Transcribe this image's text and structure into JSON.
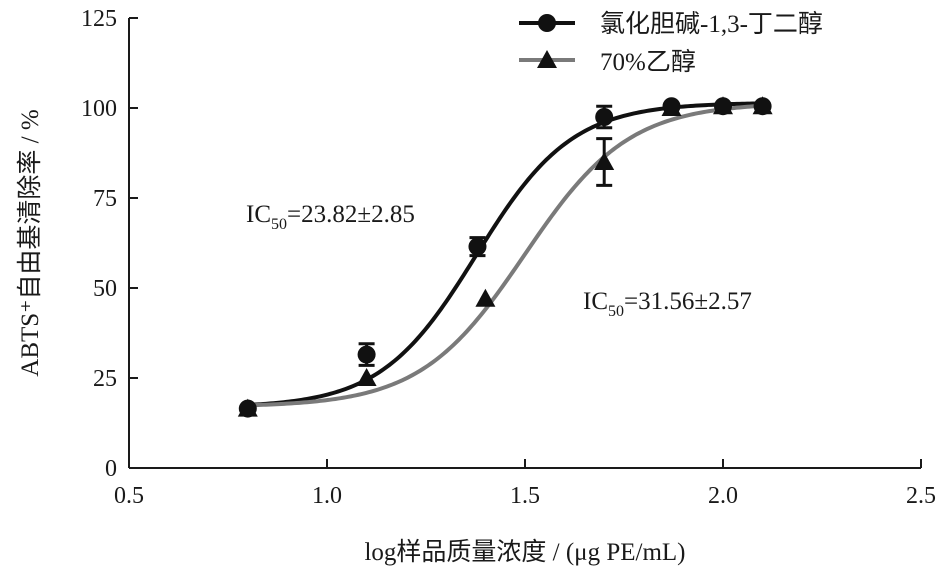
{
  "chart_data": {
    "type": "scatter",
    "xlabel": "log样品质量浓度 / (μg PE/mL)",
    "ylabel": "ABTS⁺自由基清除率 / %",
    "xlim": [
      0.5,
      2.5
    ],
    "ylim": [
      0,
      125
    ],
    "x_ticks": [
      "0.5",
      "1.0",
      "1.5",
      "2.0",
      "2.5"
    ],
    "y_ticks": [
      "0",
      "25",
      "50",
      "75",
      "100",
      "125"
    ],
    "legend_position": "top-right",
    "grid": false,
    "series": [
      {
        "name": "氯化胆碱-1,3-丁二醇",
        "marker": "circle",
        "color": "#111111",
        "x": [
          0.8,
          1.1,
          1.38,
          1.7,
          1.87,
          2.0,
          2.1
        ],
        "y": [
          16.5,
          31.5,
          61.5,
          97.5,
          100.5,
          100.5,
          100.5
        ],
        "error": [
          0,
          3,
          2.5,
          3,
          0,
          0,
          0
        ],
        "fit": {
          "bottom": 16.8,
          "top": 101.5,
          "log_ic50": 1.377,
          "hill": 3.6
        }
      },
      {
        "name": "70%乙醇",
        "marker": "triangle",
        "color": "#7a7a7a",
        "x": [
          0.8,
          1.1,
          1.4,
          1.7,
          1.87,
          2.0,
          2.1
        ],
        "y": [
          16.5,
          25,
          47,
          85,
          100,
          100.5,
          100.5
        ],
        "error": [
          0,
          0,
          0,
          6.5,
          0,
          0,
          0
        ],
        "fit": {
          "bottom": 17,
          "top": 101.5,
          "log_ic50": 1.499,
          "hill": 3.3
        }
      }
    ],
    "annotations": [
      {
        "prefix": "IC",
        "sub": "50",
        "text": "=23.82±2.85"
      },
      {
        "prefix": "IC",
        "sub": "50",
        "text": "=31.56±2.57"
      }
    ]
  }
}
